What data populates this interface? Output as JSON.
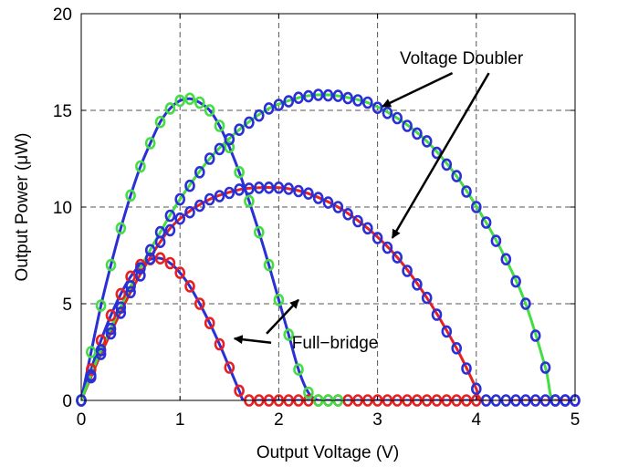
{
  "chart_data": {
    "type": "line",
    "xlabel": "Output Voltage (V)",
    "ylabel": "Output Power (μW)",
    "xlim": [
      0,
      5
    ],
    "ylim": [
      0,
      20
    ],
    "xticks": [
      "0",
      "1",
      "2",
      "3",
      "4",
      "5"
    ],
    "yticks": [
      "0",
      "5",
      "10",
      "15",
      "20"
    ],
    "grid": true,
    "annotations": [
      {
        "text": "Voltage Doubler",
        "label_at": [
          3.85,
          17.4
        ],
        "points_to": [
          [
            3.05,
            15.2
          ],
          [
            3.15,
            8.4
          ]
        ]
      },
      {
        "text": "Full−bridge",
        "label_at": [
          2.57,
          2.7
        ],
        "points_to": [
          [
            1.55,
            3.2
          ],
          [
            2.2,
            5.2
          ]
        ]
      }
    ],
    "series": [
      {
        "id": "fb_small",
        "color": "#2a2fd6",
        "marker_color": "#e82020",
        "kind": "full-bridge",
        "x": [
          0,
          0.1,
          0.2,
          0.3,
          0.4,
          0.5,
          0.6,
          0.7,
          0.8,
          0.9,
          1.0,
          1.1,
          1.2,
          1.3,
          1.4,
          1.5,
          1.6,
          1.65,
          1.8,
          2.0,
          2.5,
          3.0,
          3.5,
          4.0
        ],
        "y": [
          0,
          1.6,
          3.1,
          4.4,
          5.5,
          6.4,
          7.0,
          7.3,
          7.35,
          7.1,
          6.6,
          5.9,
          5.0,
          4.0,
          2.9,
          1.7,
          0.5,
          0,
          0,
          0,
          0,
          0,
          0,
          0
        ]
      },
      {
        "id": "vd_small",
        "color": "#e82020",
        "marker_color": "#2a2fd6",
        "kind": "voltage-doubler",
        "x": [
          0,
          0.2,
          0.5,
          0.8,
          1.0,
          1.3,
          1.6,
          1.8,
          2.0,
          2.1,
          2.3,
          2.6,
          2.9,
          3.2,
          3.5,
          3.8,
          4.0,
          4.05,
          4.5,
          5.0
        ],
        "y": [
          0,
          2.4,
          5.6,
          8.2,
          9.4,
          10.4,
          10.9,
          11.0,
          11.0,
          10.95,
          10.7,
          10.0,
          8.9,
          7.4,
          5.3,
          2.7,
          0.6,
          0,
          0,
          0
        ],
        "vd_y_note": ""
      },
      {
        "id": "fb_large",
        "color": "#2a2fd6",
        "marker_color": "#44dd44",
        "kind": "full-bridge",
        "x": [
          0,
          0.1,
          0.2,
          0.3,
          0.4,
          0.5,
          0.6,
          0.7,
          0.8,
          0.9,
          1.0,
          1.1,
          1.2,
          1.3,
          1.4,
          1.5,
          1.6,
          1.7,
          1.8,
          1.9,
          2.0,
          2.1,
          2.2,
          2.3,
          2.4,
          2.5,
          2.6
        ],
        "y": [
          0,
          2.5,
          4.9,
          7.0,
          8.9,
          10.6,
          12.1,
          13.3,
          14.4,
          15.1,
          15.5,
          15.6,
          15.4,
          15.0,
          14.2,
          13.1,
          11.8,
          10.3,
          8.7,
          7.0,
          5.2,
          3.4,
          1.6,
          0.4,
          0,
          0,
          0
        ]
      },
      {
        "id": "vd_large",
        "color": "#44dd44",
        "marker_color": "#2a2fd6",
        "kind": "voltage-doubler",
        "x": [
          0,
          0.2,
          0.5,
          0.8,
          1.0,
          1.3,
          1.6,
          1.9,
          2.2,
          2.4,
          2.6,
          2.9,
          3.2,
          3.5,
          3.8,
          4.1,
          4.3,
          4.5,
          4.7,
          4.78,
          5.0
        ],
        "y": [
          0,
          2.6,
          5.9,
          8.7,
          10.4,
          12.5,
          14.0,
          15.1,
          15.65,
          15.8,
          15.75,
          15.4,
          14.6,
          13.4,
          11.6,
          9.2,
          7.3,
          5.0,
          1.7,
          0,
          0
        ]
      }
    ]
  }
}
